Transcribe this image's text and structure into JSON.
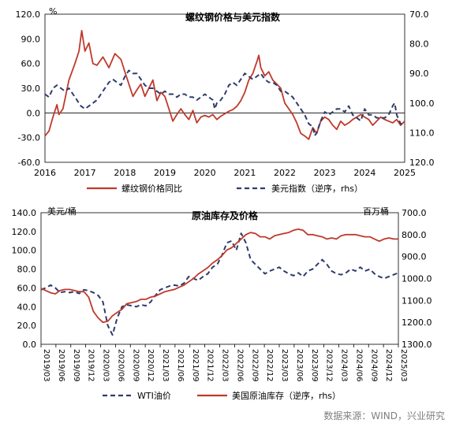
{
  "chart_data": [
    {
      "type": "line",
      "title": "螺纹钢价格与美元指数",
      "ylabel_unit": "%",
      "x_ticks": [
        "2016",
        "2017",
        "2018",
        "2019",
        "2020",
        "2021",
        "2022",
        "2023",
        "2024",
        "2025"
      ],
      "x_range": [
        2016,
        2025
      ],
      "left_axis": {
        "ticks": [
          "120.0",
          "90.0",
          "60.0",
          "30.0",
          "0.0",
          "-30.0",
          "-60.0"
        ],
        "range": [
          -60,
          120
        ]
      },
      "right_axis": {
        "ticks": [
          "70.0",
          "80.0",
          "90.0",
          "100.0",
          "110.0",
          "120.0"
        ],
        "range": [
          70,
          120
        ],
        "inverted": true
      },
      "series": [
        {
          "name": "螺纹钢价格同比",
          "color": "#c0392b",
          "axis": "left",
          "dash": false,
          "points": [
            [
              2016.0,
              -28
            ],
            [
              2016.1,
              -22
            ],
            [
              2016.2,
              -5
            ],
            [
              2016.3,
              10
            ],
            [
              2016.35,
              -2
            ],
            [
              2016.45,
              5
            ],
            [
              2016.6,
              40
            ],
            [
              2016.75,
              60
            ],
            [
              2016.85,
              75
            ],
            [
              2016.92,
              100
            ],
            [
              2017.0,
              75
            ],
            [
              2017.1,
              85
            ],
            [
              2017.2,
              60
            ],
            [
              2017.3,
              58
            ],
            [
              2017.45,
              68
            ],
            [
              2017.6,
              55
            ],
            [
              2017.75,
              72
            ],
            [
              2017.9,
              65
            ],
            [
              2018.0,
              50
            ],
            [
              2018.1,
              35
            ],
            [
              2018.2,
              20
            ],
            [
              2018.3,
              28
            ],
            [
              2018.4,
              35
            ],
            [
              2018.5,
              20
            ],
            [
              2018.6,
              30
            ],
            [
              2018.7,
              40
            ],
            [
              2018.8,
              15
            ],
            [
              2018.9,
              25
            ],
            [
              2019.0,
              20
            ],
            [
              2019.1,
              5
            ],
            [
              2019.2,
              -10
            ],
            [
              2019.3,
              -2
            ],
            [
              2019.4,
              5
            ],
            [
              2019.5,
              -2
            ],
            [
              2019.6,
              -8
            ],
            [
              2019.7,
              3
            ],
            [
              2019.8,
              -12
            ],
            [
              2019.9,
              -5
            ],
            [
              2020.0,
              -3
            ],
            [
              2020.1,
              -5
            ],
            [
              2020.2,
              -2
            ],
            [
              2020.3,
              -8
            ],
            [
              2020.4,
              -4
            ],
            [
              2020.5,
              -1
            ],
            [
              2020.6,
              2
            ],
            [
              2020.7,
              4
            ],
            [
              2020.8,
              8
            ],
            [
              2020.9,
              15
            ],
            [
              2021.0,
              25
            ],
            [
              2021.1,
              40
            ],
            [
              2021.2,
              48
            ],
            [
              2021.3,
              62
            ],
            [
              2021.35,
              70
            ],
            [
              2021.4,
              55
            ],
            [
              2021.5,
              45
            ],
            [
              2021.6,
              50
            ],
            [
              2021.7,
              40
            ],
            [
              2021.8,
              35
            ],
            [
              2021.9,
              30
            ],
            [
              2022.0,
              12
            ],
            [
              2022.1,
              5
            ],
            [
              2022.2,
              -2
            ],
            [
              2022.3,
              -12
            ],
            [
              2022.4,
              -25
            ],
            [
              2022.5,
              -28
            ],
            [
              2022.6,
              -32
            ],
            [
              2022.7,
              -18
            ],
            [
              2022.8,
              -25
            ],
            [
              2022.9,
              -10
            ],
            [
              2023.0,
              -5
            ],
            [
              2023.1,
              -8
            ],
            [
              2023.2,
              -15
            ],
            [
              2023.3,
              -20
            ],
            [
              2023.4,
              -10
            ],
            [
              2023.5,
              -15
            ],
            [
              2023.6,
              -12
            ],
            [
              2023.7,
              -8
            ],
            [
              2023.8,
              -5
            ],
            [
              2023.9,
              -2
            ],
            [
              2024.0,
              -5
            ],
            [
              2024.1,
              -8
            ],
            [
              2024.2,
              -15
            ],
            [
              2024.3,
              -10
            ],
            [
              2024.4,
              -5
            ],
            [
              2024.5,
              -8
            ],
            [
              2024.6,
              -10
            ],
            [
              2024.7,
              -12
            ],
            [
              2024.8,
              -8
            ],
            [
              2024.9,
              -15
            ],
            [
              2025.0,
              -10
            ]
          ]
        },
        {
          "name": "美元指数（逆序，rhs）",
          "color": "#2e3c6b",
          "axis": "right",
          "dash": true,
          "points": [
            [
              2016.0,
              97
            ],
            [
              2016.1,
              98
            ],
            [
              2016.2,
              95
            ],
            [
              2016.3,
              94
            ],
            [
              2016.4,
              95
            ],
            [
              2016.5,
              96
            ],
            [
              2016.6,
              95
            ],
            [
              2016.7,
              97
            ],
            [
              2016.8,
              99
            ],
            [
              2016.9,
              101
            ],
            [
              2017.0,
              102
            ],
            [
              2017.1,
              101
            ],
            [
              2017.2,
              100
            ],
            [
              2017.3,
              99
            ],
            [
              2017.4,
              97
            ],
            [
              2017.5,
              95
            ],
            [
              2017.6,
              93
            ],
            [
              2017.7,
              92
            ],
            [
              2017.8,
              93
            ],
            [
              2017.9,
              94
            ],
            [
              2018.0,
              91
            ],
            [
              2018.1,
              89
            ],
            [
              2018.2,
              90
            ],
            [
              2018.3,
              90
            ],
            [
              2018.4,
              92
            ],
            [
              2018.5,
              94
            ],
            [
              2018.6,
              95
            ],
            [
              2018.7,
              95
            ],
            [
              2018.8,
              96
            ],
            [
              2018.9,
              97
            ],
            [
              2019.0,
              96
            ],
            [
              2019.1,
              97
            ],
            [
              2019.2,
              97
            ],
            [
              2019.3,
              98
            ],
            [
              2019.4,
              97
            ],
            [
              2019.5,
              97
            ],
            [
              2019.6,
              98
            ],
            [
              2019.7,
              98
            ],
            [
              2019.8,
              99
            ],
            [
              2019.9,
              98
            ],
            [
              2020.0,
              97
            ],
            [
              2020.1,
              98
            ],
            [
              2020.2,
              99
            ],
            [
              2020.25,
              102
            ],
            [
              2020.3,
              100
            ],
            [
              2020.4,
              99
            ],
            [
              2020.5,
              97
            ],
            [
              2020.6,
              94
            ],
            [
              2020.7,
              93
            ],
            [
              2020.8,
              94
            ],
            [
              2020.9,
              92
            ],
            [
              2021.0,
              90
            ],
            [
              2021.1,
              91
            ],
            [
              2021.2,
              92
            ],
            [
              2021.3,
              91
            ],
            [
              2021.4,
              90
            ],
            [
              2021.5,
              92
            ],
            [
              2021.6,
              93
            ],
            [
              2021.7,
              93
            ],
            [
              2021.8,
              94
            ],
            [
              2021.9,
              96
            ],
            [
              2022.0,
              96
            ],
            [
              2022.1,
              97
            ],
            [
              2022.2,
              98
            ],
            [
              2022.3,
              100
            ],
            [
              2022.4,
              102
            ],
            [
              2022.5,
              104
            ],
            [
              2022.6,
              107
            ],
            [
              2022.7,
              108
            ],
            [
              2022.75,
              111
            ],
            [
              2022.8,
              110
            ],
            [
              2022.9,
              106
            ],
            [
              2023.0,
              103
            ],
            [
              2023.1,
              104
            ],
            [
              2023.2,
              103
            ],
            [
              2023.3,
              102
            ],
            [
              2023.4,
              102
            ],
            [
              2023.5,
              103
            ],
            [
              2023.6,
              101
            ],
            [
              2023.7,
              104
            ],
            [
              2023.8,
              105
            ],
            [
              2023.9,
              106
            ],
            [
              2024.0,
              102
            ],
            [
              2024.1,
              104
            ],
            [
              2024.2,
              104
            ],
            [
              2024.3,
              105
            ],
            [
              2024.4,
              105
            ],
            [
              2024.5,
              105
            ],
            [
              2024.6,
              104
            ],
            [
              2024.7,
              101
            ],
            [
              2024.75,
              100
            ],
            [
              2024.8,
              104
            ],
            [
              2024.9,
              107
            ],
            [
              2025.0,
              107
            ]
          ]
        }
      ],
      "legend_placement": "bottom"
    },
    {
      "type": "line",
      "title": "原油库存及价格",
      "left_unit": "美元/桶",
      "right_unit": "百万桶",
      "x_ticks": [
        "2019/03",
        "2019/06",
        "2019/09",
        "2019/12",
        "2020/03",
        "2020/06",
        "2020/09",
        "2020/12",
        "2021/03",
        "2021/06",
        "2021/09",
        "2021/12",
        "2022/03",
        "2022/06",
        "2022/09",
        "2022/12",
        "2023/03",
        "2023/06",
        "2023/09",
        "2023/12",
        "2024/03",
        "2024/06",
        "2024/09",
        "2024/12",
        "2025/03"
      ],
      "left_axis": {
        "ticks": [
          "140.0",
          "120.0",
          "100.0",
          "80.0",
          "60.0",
          "40.0",
          "20.0",
          "0.0"
        ],
        "range": [
          0,
          140
        ]
      },
      "right_axis": {
        "ticks": [
          "700.0",
          "800.0",
          "900.0",
          "1000.0",
          "1100.0",
          "1200.0",
          "1300.0"
        ],
        "range": [
          700,
          1300
        ],
        "inverted": true
      },
      "series": [
        {
          "name": "WTI油价",
          "color": "#2e3c6b",
          "axis": "left",
          "dash": true,
          "values": [
            58,
            60,
            63,
            60,
            55,
            56,
            55,
            56,
            54,
            58,
            57,
            55,
            52,
            45,
            20,
            10,
            28,
            40,
            42,
            41,
            40,
            42,
            41,
            45,
            52,
            58,
            60,
            62,
            63,
            62,
            65,
            72,
            70,
            68,
            72,
            75,
            82,
            85,
            95,
            108,
            110,
            100,
            118,
            108,
            90,
            85,
            80,
            75,
            78,
            80,
            82,
            78,
            75,
            73,
            76,
            72,
            78,
            80,
            85,
            90,
            85,
            78,
            75,
            74,
            76,
            80,
            78,
            82,
            78,
            80,
            75,
            72,
            70,
            72,
            74,
            76
          ]
        },
        {
          "name": "美国原油库存（逆序，rhs）",
          "color": "#c0392b",
          "axis": "right",
          "dash": false,
          "values": [
            1045,
            1055,
            1065,
            1070,
            1055,
            1050,
            1050,
            1055,
            1060,
            1060,
            1085,
            1150,
            1180,
            1200,
            1195,
            1170,
            1155,
            1140,
            1115,
            1110,
            1105,
            1095,
            1095,
            1085,
            1080,
            1070,
            1060,
            1055,
            1050,
            1040,
            1030,
            1015,
            1000,
            980,
            965,
            950,
            930,
            915,
            895,
            870,
            860,
            840,
            820,
            800,
            790,
            795,
            810,
            810,
            820,
            805,
            800,
            795,
            790,
            780,
            775,
            780,
            800,
            800,
            805,
            810,
            820,
            815,
            820,
            805,
            800,
            800,
            800,
            805,
            810,
            810,
            820,
            830,
            820,
            815,
            820,
            820
          ]
        }
      ],
      "legend_placement": "bottom"
    }
  ],
  "source_note": "数据来源：WIND，兴业研究"
}
